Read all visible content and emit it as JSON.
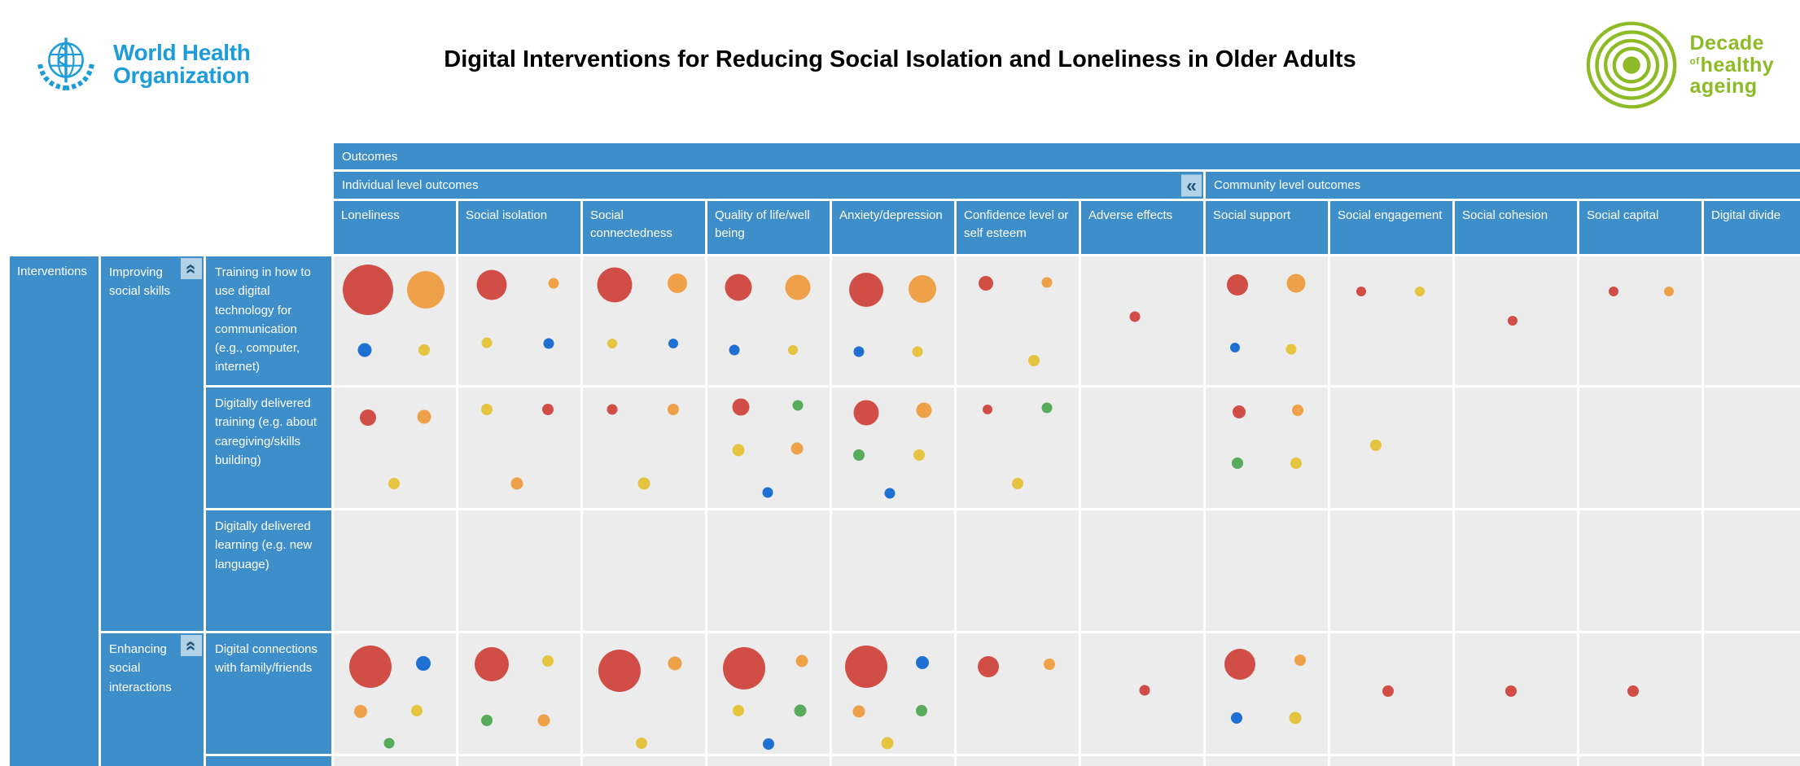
{
  "header": {
    "who": {
      "line1": "World Health",
      "line2": "Organization"
    },
    "title": "Digital Interventions for Reducing Social Isolation and Loneliness in Older Adults",
    "decade": {
      "word1": "Decade",
      "of": "of",
      "word2": "healthy",
      "word3": "ageing"
    }
  },
  "icons": {
    "collapse_left": "«",
    "chevron_up": "«"
  },
  "colors": {
    "red": "#D14E47",
    "orange": "#EFA14A",
    "yellow": "#E5C43F",
    "blue": "#1E71D3",
    "green": "#57AB5B",
    "header_blue": "#3E8EC9",
    "cell_gray": "#ECECEC",
    "collapse_bg": "#B2D2E8",
    "collapse_fg": "#1F5377",
    "who_blue": "#1D9CD9",
    "decade_green": "#8CBB26"
  },
  "chart_data": {
    "type": "bubble-matrix",
    "title": "Digital Interventions for Reducing Social Isolation and Loneliness in Older Adults",
    "columns_axis_label": "Outcomes",
    "rows_axis_label": "Interventions",
    "column_groups": [
      {
        "label": "Individual level outcomes",
        "columns": [
          "Loneliness",
          "Social isolation",
          "Social connectedness",
          "Quality of life/well being",
          "Anxiety/depression",
          "Confidence level or self esteem",
          "Adverse effects"
        ]
      },
      {
        "label": "Community level outcomes",
        "columns": [
          "Social support",
          "Social engagement",
          "Social cohesion",
          "Social capital",
          "Digital divide"
        ]
      }
    ],
    "row_groups": [
      {
        "label": "Improving social skills",
        "rows": [
          "Training in how to use digital technology for communication (e.g., computer, internet)",
          "Digitally delivered training (e.g. about caregiving/skills building)",
          "Digitally delivered learning (e.g. new language)"
        ]
      },
      {
        "label": "Enhancing social interactions",
        "rows": [
          "Digital connections with family/friends"
        ]
      }
    ],
    "bubble_note": "bubble entries per cell: c=color category, d=diameter px (relative study volume), x/y=position % within cell",
    "cells": [
      [
        [
          {
            "c": "red",
            "d": 62,
            "x": 28,
            "y": 26
          },
          {
            "c": "orange",
            "d": 46,
            "x": 75,
            "y": 26
          },
          {
            "c": "blue",
            "d": 17,
            "x": 25,
            "y": 73
          },
          {
            "c": "yellow",
            "d": 14,
            "x": 74,
            "y": 73
          }
        ],
        [
          {
            "c": "red",
            "d": 37,
            "x": 27,
            "y": 22
          },
          {
            "c": "orange",
            "d": 13,
            "x": 78,
            "y": 21
          },
          {
            "c": "yellow",
            "d": 13,
            "x": 23,
            "y": 67
          },
          {
            "c": "blue",
            "d": 13,
            "x": 74,
            "y": 68
          }
        ],
        [
          {
            "c": "red",
            "d": 43,
            "x": 26,
            "y": 22
          },
          {
            "c": "orange",
            "d": 24,
            "x": 77,
            "y": 21
          },
          {
            "c": "yellow",
            "d": 12,
            "x": 24,
            "y": 68
          },
          {
            "c": "blue",
            "d": 12,
            "x": 74,
            "y": 68
          }
        ],
        [
          {
            "c": "red",
            "d": 33,
            "x": 25,
            "y": 24
          },
          {
            "c": "orange",
            "d": 31,
            "x": 74,
            "y": 24
          },
          {
            "c": "blue",
            "d": 13,
            "x": 22,
            "y": 73
          },
          {
            "c": "yellow",
            "d": 12,
            "x": 70,
            "y": 73
          }
        ],
        [
          {
            "c": "red",
            "d": 42,
            "x": 28,
            "y": 26
          },
          {
            "c": "orange",
            "d": 34,
            "x": 74,
            "y": 25
          },
          {
            "c": "blue",
            "d": 13,
            "x": 22,
            "y": 74
          },
          {
            "c": "yellow",
            "d": 13,
            "x": 70,
            "y": 74
          }
        ],
        [
          {
            "c": "red",
            "d": 18,
            "x": 24,
            "y": 21
          },
          {
            "c": "orange",
            "d": 13,
            "x": 74,
            "y": 20
          },
          {
            "c": "yellow",
            "d": 14,
            "x": 63,
            "y": 81
          }
        ],
        [
          {
            "c": "red",
            "d": 13,
            "x": 44,
            "y": 47
          }
        ],
        [
          {
            "c": "red",
            "d": 26,
            "x": 26,
            "y": 22
          },
          {
            "c": "orange",
            "d": 23,
            "x": 74,
            "y": 21
          },
          {
            "c": "blue",
            "d": 12,
            "x": 24,
            "y": 71
          },
          {
            "c": "yellow",
            "d": 13,
            "x": 70,
            "y": 72
          }
        ],
        [
          {
            "c": "red",
            "d": 12,
            "x": 25,
            "y": 27
          },
          {
            "c": "yellow",
            "d": 12,
            "x": 73,
            "y": 27
          }
        ],
        [
          {
            "c": "red",
            "d": 12,
            "x": 47,
            "y": 50
          }
        ],
        [
          {
            "c": "red",
            "d": 12,
            "x": 28,
            "y": 27
          },
          {
            "c": "orange",
            "d": 12,
            "x": 73,
            "y": 27
          }
        ],
        []
      ],
      [
        [
          {
            "c": "red",
            "d": 20,
            "x": 28,
            "y": 25
          },
          {
            "c": "orange",
            "d": 17,
            "x": 74,
            "y": 24
          },
          {
            "c": "yellow",
            "d": 14,
            "x": 49,
            "y": 80
          }
        ],
        [
          {
            "c": "yellow",
            "d": 14,
            "x": 23,
            "y": 18
          },
          {
            "c": "red",
            "d": 14,
            "x": 73,
            "y": 18
          },
          {
            "c": "orange",
            "d": 15,
            "x": 48,
            "y": 80
          }
        ],
        [
          {
            "c": "red",
            "d": 13,
            "x": 24,
            "y": 18
          },
          {
            "c": "orange",
            "d": 14,
            "x": 74,
            "y": 18
          },
          {
            "c": "yellow",
            "d": 15,
            "x": 50,
            "y": 80
          }
        ],
        [
          {
            "c": "red",
            "d": 21,
            "x": 27,
            "y": 16
          },
          {
            "c": "green",
            "d": 13,
            "x": 74,
            "y": 15
          },
          {
            "c": "yellow",
            "d": 15,
            "x": 25,
            "y": 52
          },
          {
            "c": "orange",
            "d": 15,
            "x": 73,
            "y": 51
          },
          {
            "c": "blue",
            "d": 13,
            "x": 49,
            "y": 87
          }
        ],
        [
          {
            "c": "red",
            "d": 31,
            "x": 28,
            "y": 21
          },
          {
            "c": "orange",
            "d": 19,
            "x": 75,
            "y": 19
          },
          {
            "c": "green",
            "d": 14,
            "x": 22,
            "y": 56
          },
          {
            "c": "yellow",
            "d": 14,
            "x": 71,
            "y": 56
          },
          {
            "c": "blue",
            "d": 13,
            "x": 47,
            "y": 88
          }
        ],
        [
          {
            "c": "red",
            "d": 12,
            "x": 25,
            "y": 18
          },
          {
            "c": "green",
            "d": 13,
            "x": 74,
            "y": 17
          },
          {
            "c": "yellow",
            "d": 14,
            "x": 50,
            "y": 80
          }
        ],
        [],
        [
          {
            "c": "red",
            "d": 16,
            "x": 27,
            "y": 20
          },
          {
            "c": "orange",
            "d": 14,
            "x": 75,
            "y": 19
          },
          {
            "c": "green",
            "d": 14,
            "x": 26,
            "y": 63
          },
          {
            "c": "yellow",
            "d": 14,
            "x": 74,
            "y": 63
          }
        ],
        [
          {
            "c": "yellow",
            "d": 14,
            "x": 37,
            "y": 48
          }
        ],
        [],
        [],
        []
      ],
      [
        [],
        [],
        [],
        [],
        [],
        [],
        [],
        [],
        [],
        [],
        [],
        []
      ],
      [
        [
          {
            "c": "red",
            "d": 52,
            "x": 30,
            "y": 28
          },
          {
            "c": "blue",
            "d": 18,
            "x": 73,
            "y": 25
          },
          {
            "c": "orange",
            "d": 16,
            "x": 22,
            "y": 65
          },
          {
            "c": "yellow",
            "d": 14,
            "x": 68,
            "y": 64
          },
          {
            "c": "green",
            "d": 13,
            "x": 45,
            "y": 91
          }
        ],
        [
          {
            "c": "red",
            "d": 42,
            "x": 27,
            "y": 26
          },
          {
            "c": "yellow",
            "d": 14,
            "x": 73,
            "y": 23
          },
          {
            "c": "green",
            "d": 14,
            "x": 23,
            "y": 72
          },
          {
            "c": "orange",
            "d": 15,
            "x": 70,
            "y": 72
          }
        ],
        [
          {
            "c": "red",
            "d": 52,
            "x": 30,
            "y": 31
          },
          {
            "c": "orange",
            "d": 17,
            "x": 75,
            "y": 25
          },
          {
            "c": "yellow",
            "d": 14,
            "x": 48,
            "y": 91
          }
        ],
        [
          {
            "c": "red",
            "d": 52,
            "x": 30,
            "y": 29
          },
          {
            "c": "orange",
            "d": 15,
            "x": 77,
            "y": 23
          },
          {
            "c": "yellow",
            "d": 14,
            "x": 25,
            "y": 64
          },
          {
            "c": "green",
            "d": 15,
            "x": 76,
            "y": 64
          },
          {
            "c": "blue",
            "d": 14,
            "x": 50,
            "y": 92
          }
        ],
        [
          {
            "c": "red",
            "d": 52,
            "x": 28,
            "y": 28
          },
          {
            "c": "blue",
            "d": 16,
            "x": 74,
            "y": 24
          },
          {
            "c": "orange",
            "d": 15,
            "x": 22,
            "y": 65
          },
          {
            "c": "green",
            "d": 14,
            "x": 73,
            "y": 64
          },
          {
            "c": "yellow",
            "d": 15,
            "x": 45,
            "y": 91
          }
        ],
        [
          {
            "c": "red",
            "d": 26,
            "x": 26,
            "y": 28
          },
          {
            "c": "orange",
            "d": 14,
            "x": 76,
            "y": 26
          }
        ],
        [
          {
            "c": "red",
            "d": 13,
            "x": 52,
            "y": 47
          }
        ],
        [
          {
            "c": "red",
            "d": 38,
            "x": 28,
            "y": 26
          },
          {
            "c": "orange",
            "d": 14,
            "x": 77,
            "y": 22
          },
          {
            "c": "blue",
            "d": 14,
            "x": 25,
            "y": 70
          },
          {
            "c": "yellow",
            "d": 15,
            "x": 73,
            "y": 70
          }
        ],
        [
          {
            "c": "red",
            "d": 14,
            "x": 47,
            "y": 48
          }
        ],
        [
          {
            "c": "red",
            "d": 14,
            "x": 46,
            "y": 48
          }
        ],
        [
          {
            "c": "red",
            "d": 14,
            "x": 44,
            "y": 48
          }
        ],
        []
      ]
    ]
  }
}
